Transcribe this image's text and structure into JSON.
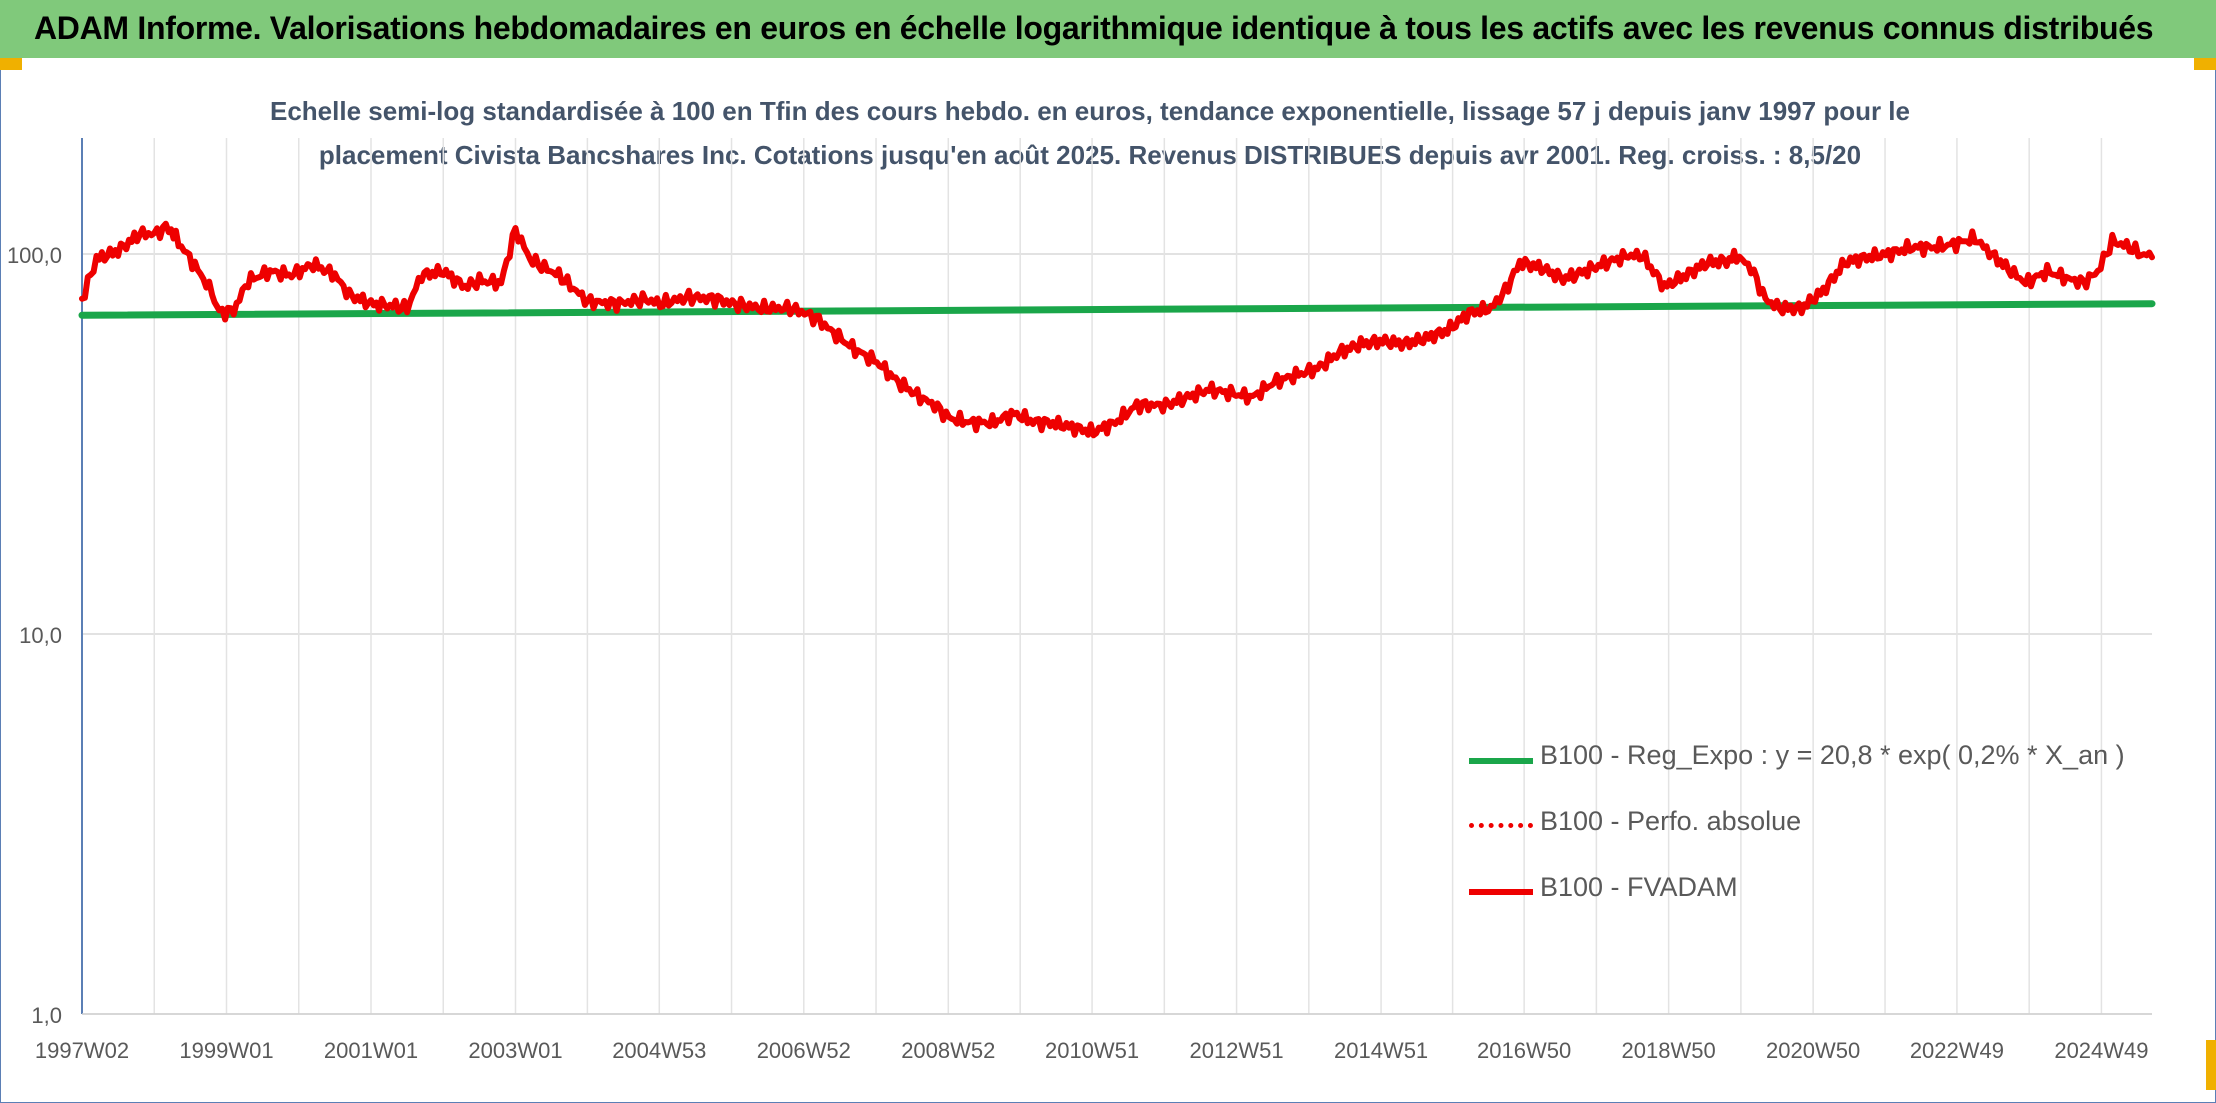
{
  "banner": {
    "title": "ADAM Informe. Valorisations hebdomadaires en euros en échelle logarithmique identique à tous les actifs avec les revenus connus distribués"
  },
  "colors": {
    "banner_bg": "#80c97b",
    "regression": "#1aa64a",
    "fvadam": "#ee0000",
    "perfo": "#ee0000",
    "grid": "#d9d9d9",
    "axis": "#5b7fb5"
  },
  "chart_data": {
    "type": "line",
    "title_line1": "Echelle semi-log standardisée à 100 en Tfin des cours hebdo. en euros, tendance exponentielle, lissage 57 j depuis janv 1997 pour le",
    "title_line2": "placement Civista Bancshares Inc. Cotations jusqu'en août 2025. Revenus DISTRIBUES depuis avr 2001. Reg. croiss. : 8,5/20",
    "y_scale": "log",
    "ylim": [
      1,
      200
    ],
    "y_ticks": [
      {
        "value": 1,
        "label": "1,0"
      },
      {
        "value": 10,
        "label": "10,0"
      },
      {
        "value": 100,
        "label": "100,0"
      }
    ],
    "xlim": [
      1997.0,
      2025.65
    ],
    "x_ticks": [
      {
        "label": "1997W02",
        "year": 1997.0
      },
      {
        "label": "1999W01",
        "year": 1999.0
      },
      {
        "label": "2001W01",
        "year": 2001.0
      },
      {
        "label": "2003W01",
        "year": 2003.0
      },
      {
        "label": "2004W53",
        "year": 2004.99
      },
      {
        "label": "2006W52",
        "year": 2006.99
      },
      {
        "label": "2008W52",
        "year": 2008.99
      },
      {
        "label": "2010W51",
        "year": 2010.98
      },
      {
        "label": "2012W51",
        "year": 2012.98
      },
      {
        "label": "2014W51",
        "year": 2014.98
      },
      {
        "label": "2016W50",
        "year": 2016.96
      },
      {
        "label": "2018W50",
        "year": 2018.96
      },
      {
        "label": "2020W50",
        "year": 2020.96
      },
      {
        "label": "2022W49",
        "year": 2022.95
      },
      {
        "label": "2024W49",
        "year": 2024.95
      }
    ],
    "grid": true,
    "legend_position": "bottom-right",
    "series": [
      {
        "name": "B100 - Reg_Expo : y = 20,8 * exp( 0,2% *  X_an )",
        "style": "solid",
        "x": [
          1997.0,
          2025.65
        ],
        "y": [
          69,
          74
        ]
      },
      {
        "name": "B100 - Perfo. absolue",
        "style": "dotted",
        "x": [],
        "y": []
      },
      {
        "name": "B100 - FVADAM",
        "style": "solid",
        "x": [
          1997.0,
          1997.2,
          1997.5,
          1997.8,
          1998.0,
          1998.2,
          1998.3,
          1998.6,
          1998.8,
          1998.9,
          1999.1,
          1999.3,
          1999.6,
          1999.9,
          2000.2,
          2000.5,
          2000.7,
          2001.0,
          2001.3,
          2001.5,
          2001.7,
          2002.0,
          2002.3,
          2002.5,
          2002.8,
          2003.0,
          2003.2,
          2003.4,
          2003.6,
          2004.0,
          2004.4,
          2004.8,
          2005.0,
          2005.4,
          2005.8,
          2006.0,
          2006.4,
          2006.8,
          2007.0,
          2007.2,
          2007.4,
          2007.7,
          2008.0,
          2008.3,
          2008.6,
          2008.8,
          2009.0,
          2009.3,
          2009.6,
          2009.9,
          2010.2,
          2010.4,
          2010.7,
          2011.0,
          2011.3,
          2011.6,
          2011.8,
          2012.0,
          2012.3,
          2012.6,
          2012.9,
          2013.2,
          2013.5,
          2013.8,
          2014.1,
          2014.4,
          2014.7,
          2015.0,
          2015.3,
          2015.6,
          2015.9,
          2016.2,
          2016.5,
          2016.7,
          2016.9,
          2017.2,
          2017.5,
          2017.8,
          2018.1,
          2018.4,
          2018.6,
          2018.9,
          2019.2,
          2019.5,
          2019.8,
          2019.9,
          2020.1,
          2020.3,
          2020.5,
          2020.8,
          2021.1,
          2021.4,
          2021.7,
          2022.0,
          2022.3,
          2022.6,
          2022.9,
          2023.2,
          2023.4,
          2023.7,
          2023.9,
          2024.2,
          2024.5,
          2024.7,
          2024.9,
          2025.1,
          2025.3,
          2025.5,
          2025.65
        ],
        "y": [
          76,
          97,
          102,
          113,
          113,
          118,
          110,
          91,
          79,
          70,
          71,
          85,
          90,
          88,
          94,
          88,
          78,
          74,
          73,
          72,
          88,
          90,
          82,
          85,
          84,
          116,
          97,
          92,
          88,
          75,
          74,
          76,
          74,
          77,
          76,
          74,
          72,
          72,
          70,
          67,
          62,
          56,
          52,
          46,
          42,
          40,
          37,
          36,
          36,
          38,
          36,
          36,
          35,
          34,
          36,
          40,
          40,
          40,
          42,
          44,
          43,
          42,
          46,
          48,
          50,
          55,
          58,
          59,
          58,
          60,
          63,
          70,
          72,
          80,
          95,
          92,
          86,
          90,
          95,
          99,
          99,
          82,
          88,
          95,
          96,
          99,
          92,
          76,
          72,
          72,
          80,
          95,
          98,
          100,
          104,
          104,
          106,
          110,
          101,
          90,
          84,
          90,
          86,
          84,
          90,
          108,
          105,
          100,
          98
        ]
      }
    ]
  }
}
